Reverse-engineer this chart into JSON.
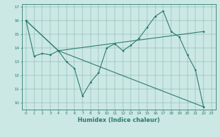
{
  "xlabel": "Humidex (Indice chaleur)",
  "bg_color": "#cce8e4",
  "line_color": "#2a7a6a",
  "xlim": [
    -0.5,
    23.5
  ],
  "ylim": [
    9.5,
    17.2
  ],
  "yticks": [
    10,
    11,
    12,
    13,
    14,
    15,
    16,
    17
  ],
  "xticks": [
    0,
    1,
    2,
    3,
    4,
    5,
    6,
    7,
    8,
    9,
    10,
    11,
    12,
    13,
    14,
    15,
    16,
    17,
    18,
    19,
    20,
    21,
    22,
    23
  ],
  "series1": [
    [
      0,
      16.0
    ],
    [
      1,
      13.4
    ],
    [
      2,
      13.6
    ],
    [
      3,
      13.5
    ],
    [
      4,
      13.8
    ],
    [
      5,
      13.0
    ],
    [
      6,
      12.5
    ],
    [
      7,
      10.5
    ],
    [
      8,
      11.5
    ],
    [
      9,
      12.2
    ],
    [
      10,
      14.0
    ],
    [
      11,
      14.3
    ],
    [
      12,
      13.8
    ],
    [
      13,
      14.2
    ],
    [
      14,
      14.7
    ],
    [
      15,
      15.5
    ],
    [
      16,
      16.3
    ],
    [
      17,
      16.7
    ],
    [
      18,
      15.2
    ],
    [
      19,
      14.8
    ],
    [
      20,
      13.5
    ],
    [
      21,
      12.4
    ],
    [
      22,
      9.7
    ]
  ],
  "series2": [
    [
      0,
      16.0
    ],
    [
      4,
      13.8
    ],
    [
      22,
      9.7
    ]
  ],
  "series3": [
    [
      0,
      16.0
    ],
    [
      4,
      13.8
    ],
    [
      22,
      15.2
    ]
  ]
}
